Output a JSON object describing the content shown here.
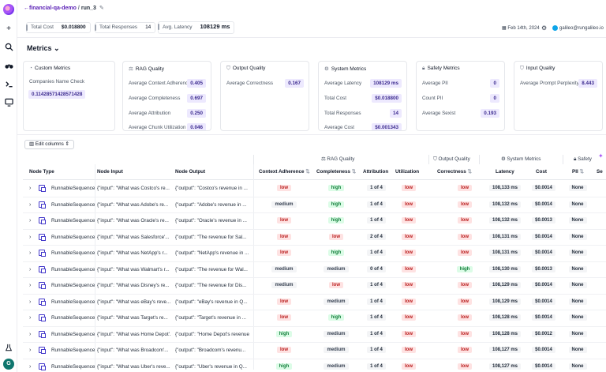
{
  "breadcrumb": {
    "project": "financial-qa-demo",
    "run": "run_3"
  },
  "stats": {
    "total_cost_label": "Total Cost",
    "total_cost": "$0.018800",
    "total_responses_label": "Total Responses",
    "total_responses": "14",
    "avg_latency_label": "Avg. Latency",
    "avg_latency": "108129 ms"
  },
  "header": {
    "date": "Feb 14th, 2024",
    "user_email": "galileo@rungalileo.io"
  },
  "metrics_title": "Metrics",
  "cards": {
    "custom": {
      "title": "Custom Metrics",
      "sub": "Companies Name Check",
      "value": "0.11428571428571428"
    },
    "rag": {
      "title": "RAG Quality",
      "rows": [
        {
          "label": "Average Context Adherence",
          "value": "0.405"
        },
        {
          "label": "Average Completeness",
          "value": "0.697"
        },
        {
          "label": "Average Attribution",
          "value": "0.250"
        },
        {
          "label": "Average Chunk Utilization",
          "value": "0.046"
        }
      ]
    },
    "output": {
      "title": "Output Quality",
      "rows": [
        {
          "label": "Average Correctness",
          "value": "0.167"
        }
      ]
    },
    "system": {
      "title": "System Metrics",
      "rows": [
        {
          "label": "Average Latency",
          "value": "108129 ms"
        },
        {
          "label": "Total Cost",
          "value": "$0.018800"
        },
        {
          "label": "Total Responses",
          "value": "14"
        },
        {
          "label": "Average Cost",
          "value": "$0.001343"
        }
      ]
    },
    "safety": {
      "title": "Safety Metrics",
      "rows": [
        {
          "label": "Average PII",
          "value": "0"
        },
        {
          "label": "Count PII",
          "value": "0"
        },
        {
          "label": "Average Sexist",
          "value": "0.193"
        }
      ]
    },
    "input": {
      "title": "Input Quality",
      "rows": [
        {
          "label": "Average Prompt Perplexity",
          "value": "8.443"
        }
      ]
    }
  },
  "edit_columns_label": "Edit columns",
  "table": {
    "groups": {
      "rag": "RAG Quality",
      "output": "Output Quality",
      "system": "System Metrics",
      "safety": "Safety"
    },
    "headers": {
      "node_type": "Node Type",
      "node_input": "Node Input",
      "node_output": "Node Output",
      "context_adherence": "Context Adherence",
      "completeness": "Completeness",
      "attribution": "Attribution",
      "utilization": "Utilization",
      "correctness": "Correctness",
      "latency": "Latency",
      "cost": "Cost",
      "pii": "PII",
      "se": "Se"
    },
    "rows": [
      {
        "type": "RunnableSequence",
        "input": "{\"input\": \"What was Costco's re...",
        "output": "{\"output\": \"Costco's revenue in ...",
        "ca": "low",
        "comp": "high",
        "attr": "1 of 4",
        "util": "low",
        "corr": "low",
        "lat": "108,133 ms",
        "cost": "$0.0014",
        "pii": "None"
      },
      {
        "type": "RunnableSequence",
        "input": "{\"input\": \"What was Adobe's re...",
        "output": "{\"output\": \"Adobe's revenue in ...",
        "ca": "medium",
        "comp": "high",
        "attr": "1 of 4",
        "util": "low",
        "corr": "low",
        "lat": "108,132 ms",
        "cost": "$0.0014",
        "pii": "None"
      },
      {
        "type": "RunnableSequence",
        "input": "{\"input\": \"What was Oracle's re...",
        "output": "{\"output\": \"Oracle's revenue in ...",
        "ca": "low",
        "comp": "high",
        "attr": "1 of 4",
        "util": "low",
        "corr": "low",
        "lat": "108,132 ms",
        "cost": "$0.0013",
        "pii": "None"
      },
      {
        "type": "RunnableSequence",
        "input": "{\"input\": \"What was Salesforce'...",
        "output": "{\"output\": \"The revenue for Sal...",
        "ca": "low",
        "comp": "low",
        "attr": "2 of 4",
        "util": "low",
        "corr": "low",
        "lat": "108,131 ms",
        "cost": "$0.0014",
        "pii": "None"
      },
      {
        "type": "RunnableSequence",
        "input": "{\"input\": \"What was NetApp's r...",
        "output": "{\"output\": \"NetApp's revenue in ...",
        "ca": "low",
        "comp": "high",
        "attr": "1 of 4",
        "util": "low",
        "corr": "low",
        "lat": "108,131 ms",
        "cost": "$0.0014",
        "pii": "None"
      },
      {
        "type": "RunnableSequence",
        "input": "{\"input\": \"What was Walmart's r...",
        "output": "{\"output\": \"The revenue for Wal...",
        "ca": "medium",
        "comp": "medium",
        "attr": "0 of 4",
        "util": "low",
        "corr": "high",
        "lat": "108,130 ms",
        "cost": "$0.0013",
        "pii": "None"
      },
      {
        "type": "RunnableSequence",
        "input": "{\"input\": \"What was Disney's re...",
        "output": "{\"output\": \"The revenue for Dis...",
        "ca": "medium",
        "comp": "low",
        "attr": "1 of 4",
        "util": "low",
        "corr": "low",
        "lat": "108,129 ms",
        "cost": "$0.0014",
        "pii": "None"
      },
      {
        "type": "RunnableSequence",
        "input": "{\"input\": \"What was eBay's reve...",
        "output": "{\"output\": \"eBay's revenue in Q...",
        "ca": "low",
        "comp": "medium",
        "attr": "1 of 4",
        "util": "low",
        "corr": "low",
        "lat": "108,129 ms",
        "cost": "$0.0014",
        "pii": "None"
      },
      {
        "type": "RunnableSequence",
        "input": "{\"input\": \"What was Target's re...",
        "output": "{\"output\": \"Target's revenue in ...",
        "ca": "low",
        "comp": "high",
        "attr": "1 of 4",
        "util": "low",
        "corr": "low",
        "lat": "108,128 ms",
        "cost": "$0.0014",
        "pii": "None"
      },
      {
        "type": "RunnableSequence",
        "input": "{\"input\": \"What was Home Depot'...",
        "output": "{\"output\": \"Home Depot's revenue...",
        "ca": "high",
        "comp": "medium",
        "attr": "1 of 4",
        "util": "low",
        "corr": "low",
        "lat": "108,128 ms",
        "cost": "$0.0012",
        "pii": "None"
      },
      {
        "type": "RunnableSequence",
        "input": "{\"input\": \"What was Broadcom'...",
        "output": "{\"output\": \"Broadcom's revenu...",
        "ca": "low",
        "comp": "medium",
        "attr": "1 of 4",
        "util": "low",
        "corr": "low",
        "lat": "108,127 ms",
        "cost": "$0.0014",
        "pii": "None"
      },
      {
        "type": "RunnableSequence",
        "input": "{\"input\": \"What was Uber's reve...",
        "output": "{\"output\": \"Uber's revenue in Q...",
        "ca": "high",
        "comp": "medium",
        "attr": "1 of 4",
        "util": "low",
        "corr": "low",
        "lat": "108,127 ms",
        "cost": "$0.0014",
        "pii": "None"
      }
    ]
  },
  "colors": {
    "accent": "#5b21b6",
    "chip_bg": "#ede9fe",
    "low": "#b91c1c",
    "high": "#15803d"
  },
  "icons": {
    "rail": [
      "plus-icon",
      "search-icon",
      "binoculars-icon",
      "terminal-icon",
      "monitor-icon",
      "lab-flask-icon"
    ]
  }
}
